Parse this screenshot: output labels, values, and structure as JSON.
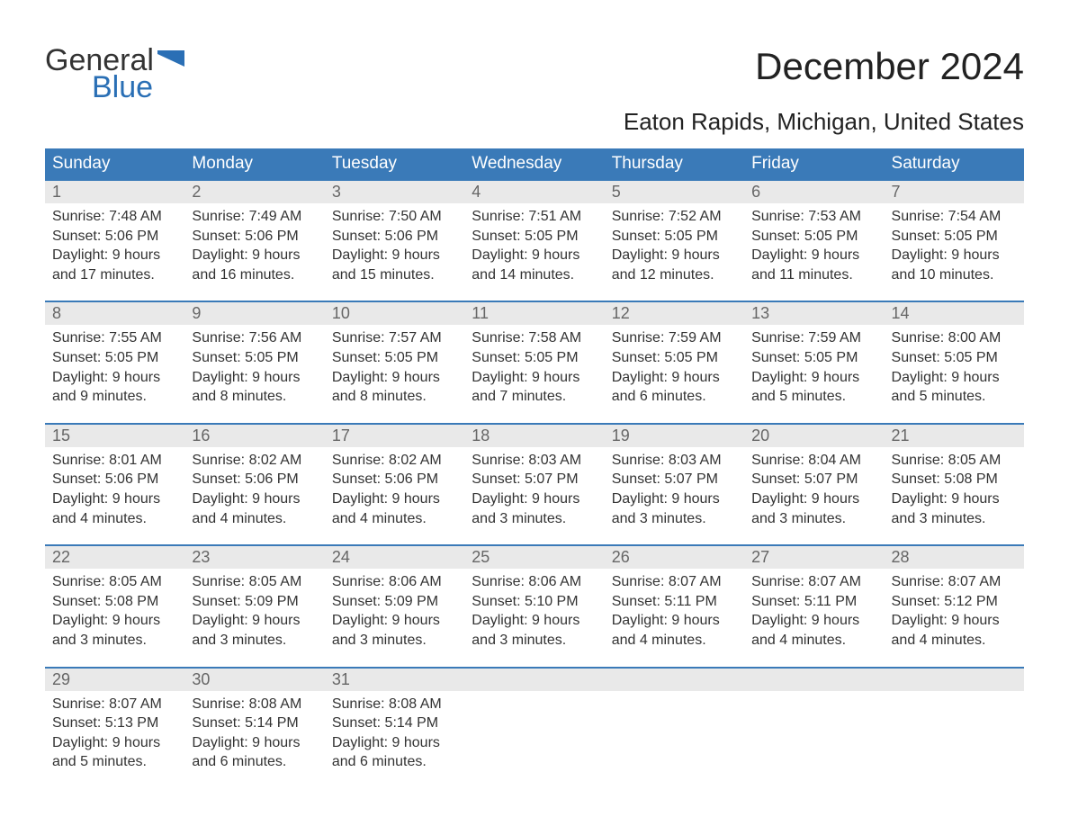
{
  "logo": {
    "word1": "General",
    "word2": "Blue"
  },
  "title": "December 2024",
  "subtitle": "Eaton Rapids, Michigan, United States",
  "colors": {
    "header_bg": "#3a7ab8",
    "header_text": "#ffffff",
    "daynum_bg": "#e9e9e9",
    "daynum_text": "#666666",
    "body_text": "#333333",
    "logo_blue": "#2a6fb5",
    "row_border": "#3a7ab8"
  },
  "weekdays": [
    "Sunday",
    "Monday",
    "Tuesday",
    "Wednesday",
    "Thursday",
    "Friday",
    "Saturday"
  ],
  "weeks": [
    [
      {
        "n": "1",
        "sunrise": "7:48 AM",
        "sunset": "5:06 PM",
        "dl1": "Daylight: 9 hours",
        "dl2": "and 17 minutes."
      },
      {
        "n": "2",
        "sunrise": "7:49 AM",
        "sunset": "5:06 PM",
        "dl1": "Daylight: 9 hours",
        "dl2": "and 16 minutes."
      },
      {
        "n": "3",
        "sunrise": "7:50 AM",
        "sunset": "5:06 PM",
        "dl1": "Daylight: 9 hours",
        "dl2": "and 15 minutes."
      },
      {
        "n": "4",
        "sunrise": "7:51 AM",
        "sunset": "5:05 PM",
        "dl1": "Daylight: 9 hours",
        "dl2": "and 14 minutes."
      },
      {
        "n": "5",
        "sunrise": "7:52 AM",
        "sunset": "5:05 PM",
        "dl1": "Daylight: 9 hours",
        "dl2": "and 12 minutes."
      },
      {
        "n": "6",
        "sunrise": "7:53 AM",
        "sunset": "5:05 PM",
        "dl1": "Daylight: 9 hours",
        "dl2": "and 11 minutes."
      },
      {
        "n": "7",
        "sunrise": "7:54 AM",
        "sunset": "5:05 PM",
        "dl1": "Daylight: 9 hours",
        "dl2": "and 10 minutes."
      }
    ],
    [
      {
        "n": "8",
        "sunrise": "7:55 AM",
        "sunset": "5:05 PM",
        "dl1": "Daylight: 9 hours",
        "dl2": "and 9 minutes."
      },
      {
        "n": "9",
        "sunrise": "7:56 AM",
        "sunset": "5:05 PM",
        "dl1": "Daylight: 9 hours",
        "dl2": "and 8 minutes."
      },
      {
        "n": "10",
        "sunrise": "7:57 AM",
        "sunset": "5:05 PM",
        "dl1": "Daylight: 9 hours",
        "dl2": "and 8 minutes."
      },
      {
        "n": "11",
        "sunrise": "7:58 AM",
        "sunset": "5:05 PM",
        "dl1": "Daylight: 9 hours",
        "dl2": "and 7 minutes."
      },
      {
        "n": "12",
        "sunrise": "7:59 AM",
        "sunset": "5:05 PM",
        "dl1": "Daylight: 9 hours",
        "dl2": "and 6 minutes."
      },
      {
        "n": "13",
        "sunrise": "7:59 AM",
        "sunset": "5:05 PM",
        "dl1": "Daylight: 9 hours",
        "dl2": "and 5 minutes."
      },
      {
        "n": "14",
        "sunrise": "8:00 AM",
        "sunset": "5:05 PM",
        "dl1": "Daylight: 9 hours",
        "dl2": "and 5 minutes."
      }
    ],
    [
      {
        "n": "15",
        "sunrise": "8:01 AM",
        "sunset": "5:06 PM",
        "dl1": "Daylight: 9 hours",
        "dl2": "and 4 minutes."
      },
      {
        "n": "16",
        "sunrise": "8:02 AM",
        "sunset": "5:06 PM",
        "dl1": "Daylight: 9 hours",
        "dl2": "and 4 minutes."
      },
      {
        "n": "17",
        "sunrise": "8:02 AM",
        "sunset": "5:06 PM",
        "dl1": "Daylight: 9 hours",
        "dl2": "and 4 minutes."
      },
      {
        "n": "18",
        "sunrise": "8:03 AM",
        "sunset": "5:07 PM",
        "dl1": "Daylight: 9 hours",
        "dl2": "and 3 minutes."
      },
      {
        "n": "19",
        "sunrise": "8:03 AM",
        "sunset": "5:07 PM",
        "dl1": "Daylight: 9 hours",
        "dl2": "and 3 minutes."
      },
      {
        "n": "20",
        "sunrise": "8:04 AM",
        "sunset": "5:07 PM",
        "dl1": "Daylight: 9 hours",
        "dl2": "and 3 minutes."
      },
      {
        "n": "21",
        "sunrise": "8:05 AM",
        "sunset": "5:08 PM",
        "dl1": "Daylight: 9 hours",
        "dl2": "and 3 minutes."
      }
    ],
    [
      {
        "n": "22",
        "sunrise": "8:05 AM",
        "sunset": "5:08 PM",
        "dl1": "Daylight: 9 hours",
        "dl2": "and 3 minutes."
      },
      {
        "n": "23",
        "sunrise": "8:05 AM",
        "sunset": "5:09 PM",
        "dl1": "Daylight: 9 hours",
        "dl2": "and 3 minutes."
      },
      {
        "n": "24",
        "sunrise": "8:06 AM",
        "sunset": "5:09 PM",
        "dl1": "Daylight: 9 hours",
        "dl2": "and 3 minutes."
      },
      {
        "n": "25",
        "sunrise": "8:06 AM",
        "sunset": "5:10 PM",
        "dl1": "Daylight: 9 hours",
        "dl2": "and 3 minutes."
      },
      {
        "n": "26",
        "sunrise": "8:07 AM",
        "sunset": "5:11 PM",
        "dl1": "Daylight: 9 hours",
        "dl2": "and 4 minutes."
      },
      {
        "n": "27",
        "sunrise": "8:07 AM",
        "sunset": "5:11 PM",
        "dl1": "Daylight: 9 hours",
        "dl2": "and 4 minutes."
      },
      {
        "n": "28",
        "sunrise": "8:07 AM",
        "sunset": "5:12 PM",
        "dl1": "Daylight: 9 hours",
        "dl2": "and 4 minutes."
      }
    ],
    [
      {
        "n": "29",
        "sunrise": "8:07 AM",
        "sunset": "5:13 PM",
        "dl1": "Daylight: 9 hours",
        "dl2": "and 5 minutes."
      },
      {
        "n": "30",
        "sunrise": "8:08 AM",
        "sunset": "5:14 PM",
        "dl1": "Daylight: 9 hours",
        "dl2": "and 6 minutes."
      },
      {
        "n": "31",
        "sunrise": "8:08 AM",
        "sunset": "5:14 PM",
        "dl1": "Daylight: 9 hours",
        "dl2": "and 6 minutes."
      },
      null,
      null,
      null,
      null
    ]
  ],
  "labels": {
    "sunrise_prefix": "Sunrise: ",
    "sunset_prefix": "Sunset: "
  }
}
